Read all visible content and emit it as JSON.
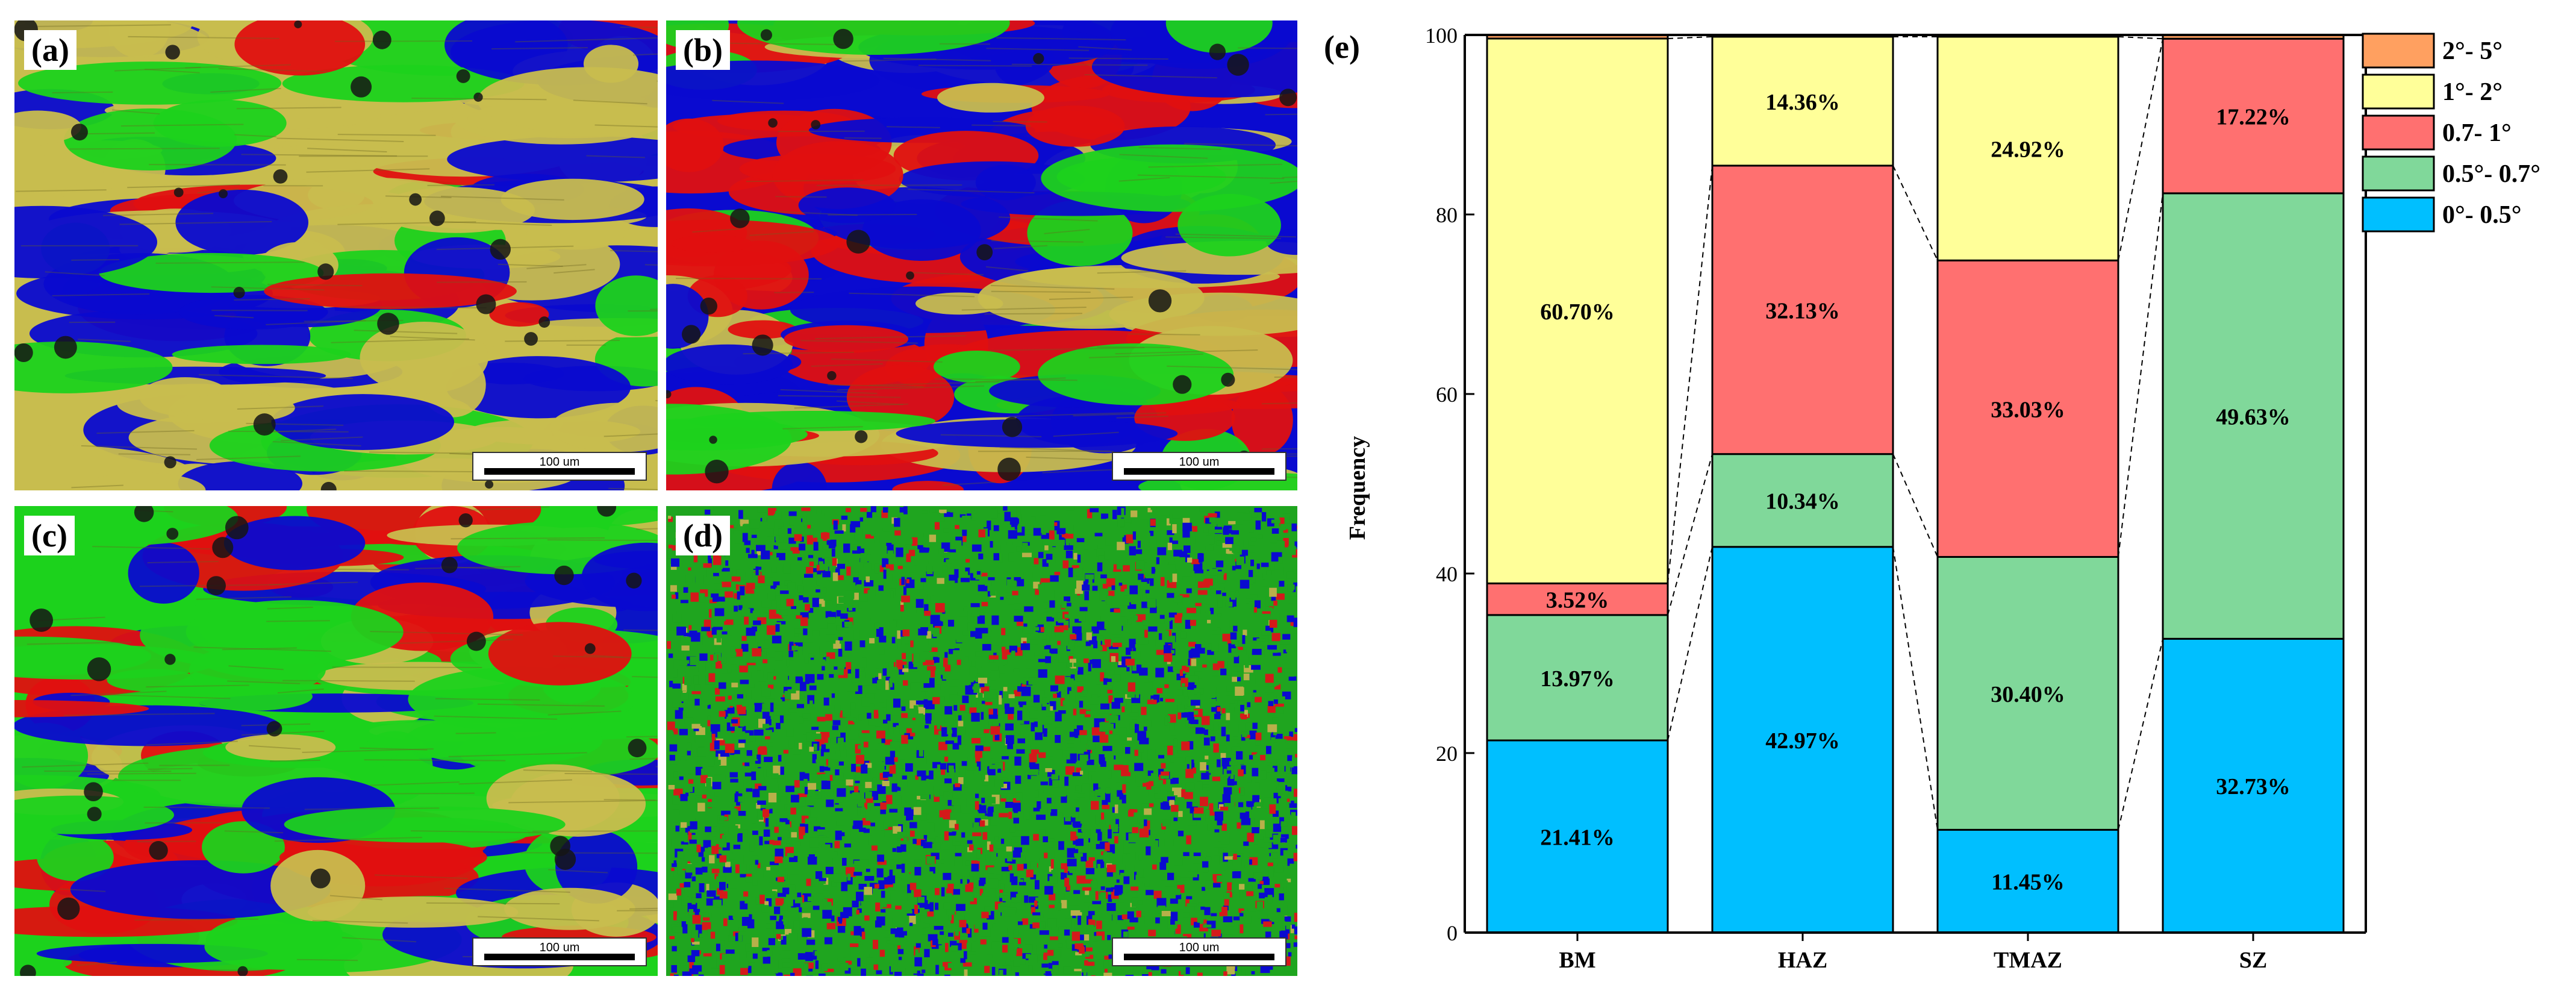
{
  "panels": [
    {
      "label": "(a)",
      "scalebar": "100 um",
      "palette": [
        "#c8bd4e",
        "#c8bd4e",
        "#d4c95a",
        "#0a0ad0",
        "#1cd21c",
        "#e01010"
      ],
      "weights": [
        0.58,
        0.0,
        0.0,
        0.24,
        0.12,
        0.06
      ]
    },
    {
      "label": "(b)",
      "scalebar": "100 um",
      "palette": [
        "#0a0ad0",
        "#e01010",
        "#1cd21c",
        "#c8bd4e"
      ],
      "weights": [
        0.38,
        0.34,
        0.16,
        0.12
      ]
    },
    {
      "label": "(c)",
      "scalebar": "100 um",
      "palette": [
        "#1cd21c",
        "#e01010",
        "#0a0ad0",
        "#c8bd4e"
      ],
      "weights": [
        0.36,
        0.28,
        0.16,
        0.2
      ]
    },
    {
      "label": "(d)",
      "scalebar": "100 um",
      "palette": [
        "#1fa51f",
        "#0a0ad0",
        "#d41a1a",
        "#b8b04a"
      ],
      "weights": [
        0.5,
        0.3,
        0.16,
        0.04
      ]
    }
  ],
  "chart_label": "(e)",
  "chart_data": {
    "type": "bar",
    "stacked": true,
    "categories": [
      "BM",
      "HAZ",
      "TMAZ",
      "SZ"
    ],
    "ylabel": "Frequency",
    "xlabel": "",
    "ylim": [
      0,
      100
    ],
    "yticks": [
      0,
      20,
      40,
      60,
      80,
      100
    ],
    "legend_position": "outside-top-right",
    "series": [
      {
        "name": "0°- 0.5°",
        "color": "#00bfff",
        "values": [
          21.41,
          42.97,
          11.45,
          32.73
        ],
        "labels": [
          "21.41%",
          "42.97%",
          "11.45%",
          "32.73%"
        ]
      },
      {
        "name": "0.5°- 0.7°",
        "color": "#80d89a",
        "values": [
          13.97,
          10.34,
          30.4,
          49.63
        ],
        "labels": [
          "13.97%",
          "10.34%",
          "30.40%",
          "49.63%"
        ]
      },
      {
        "name": "0.7- 1°",
        "color": "#ff7070",
        "values": [
          3.52,
          32.13,
          33.03,
          17.22
        ],
        "labels": [
          "3.52%",
          "32.13%",
          "33.03%",
          "17.22%"
        ]
      },
      {
        "name": "1°- 2°",
        "color": "#ffff99",
        "values": [
          60.7,
          14.36,
          24.92,
          0.0
        ],
        "labels": [
          "60.70%",
          "14.36%",
          "24.92%",
          ""
        ]
      },
      {
        "name": "2°- 5°",
        "color": "#ffa060",
        "values": [
          0.4,
          0.2,
          0.2,
          0.42
        ],
        "labels": [
          "",
          "",
          "",
          ""
        ]
      }
    ]
  }
}
